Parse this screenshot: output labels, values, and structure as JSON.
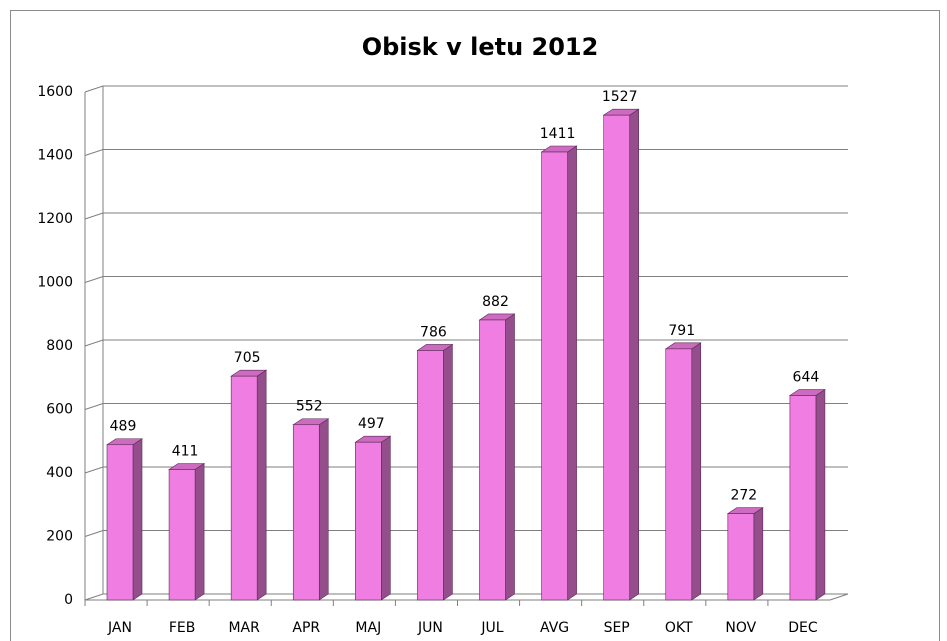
{
  "chart_data": {
    "type": "bar3d",
    "title": "Obisk v letu 2012",
    "categories": [
      "JAN",
      "FEB",
      "MAR",
      "APR",
      "MAJ",
      "JUN",
      "JUL",
      "AVG",
      "SEP",
      "OKT",
      "NOV",
      "DEC"
    ],
    "values": [
      489,
      411,
      705,
      552,
      497,
      786,
      882,
      1411,
      1527,
      791,
      272,
      644
    ],
    "color": "#f07ee2",
    "ylim": [
      0,
      1600
    ],
    "yticks": [
      0,
      200,
      400,
      600,
      800,
      1000,
      1200,
      1400,
      1600
    ],
    "grid": true
  }
}
